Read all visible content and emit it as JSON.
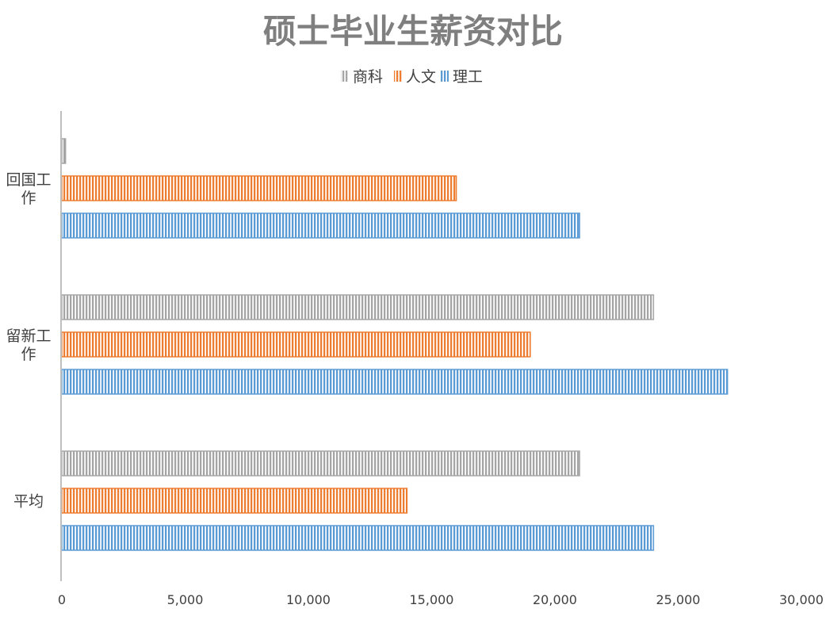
{
  "chart_data": {
    "type": "bar",
    "orientation": "horizontal",
    "title": "硕士毕业生薪资对比",
    "categories": [
      [
        "回国工",
        "作"
      ],
      [
        "留新工",
        "作"
      ],
      [
        "平均"
      ]
    ],
    "series": [
      {
        "name": "商科",
        "color": "#a5a5a5",
        "values": [
          150,
          24000,
          21000
        ]
      },
      {
        "name": "人文",
        "color": "#ed7d31",
        "values": [
          16000,
          19000,
          14000
        ]
      },
      {
        "name": "理工",
        "color": "#5b9bd5",
        "values": [
          21000,
          27000,
          24000
        ]
      }
    ],
    "xlim": [
      0,
      30000
    ],
    "xticks": [
      "0",
      "5,000",
      "10,000",
      "15,000",
      "20,000",
      "25,000",
      "30,000"
    ],
    "legend_position": "top",
    "grid": false,
    "pattern": "vertical-stripes"
  }
}
